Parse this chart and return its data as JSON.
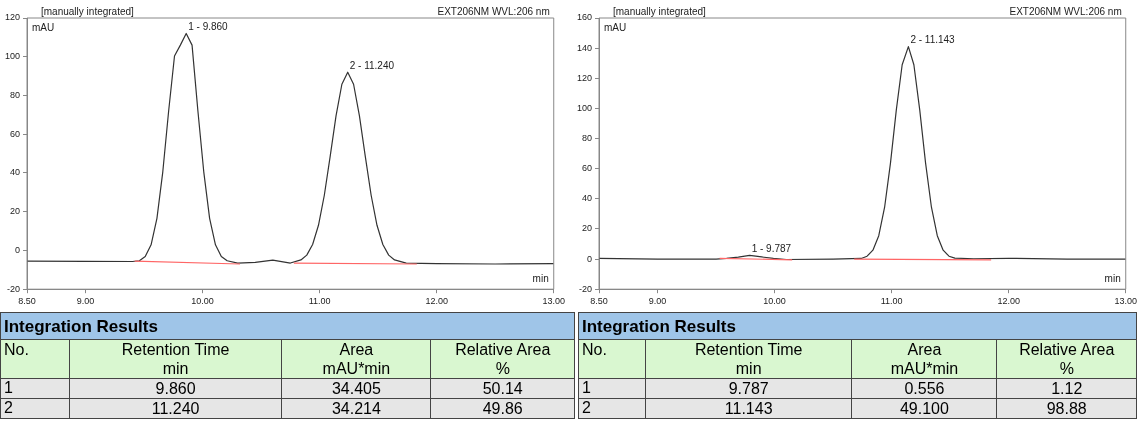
{
  "chart_data": [
    {
      "type": "line",
      "xlabel": "min",
      "ylabel": "mAU",
      "xlim": [
        8.5,
        13
      ],
      "ylim": [
        -20,
        120
      ],
      "xticks": [
        {
          "value": 8.5,
          "label": "8.50"
        },
        {
          "value": 9,
          "label": "9.00"
        },
        {
          "value": 10,
          "label": "10.00"
        },
        {
          "value": 11,
          "label": "11.00"
        },
        {
          "value": 12,
          "label": "12.00"
        },
        {
          "value": 13,
          "label": "13.00"
        }
      ],
      "yticks": [
        -20,
        0,
        20,
        40,
        60,
        80,
        100,
        120
      ],
      "annotations": [
        "[manually integrated]",
        "EXT206NM WVL:206 nm",
        {
          "text": "1 - 9.860",
          "x": 9.86,
          "y": 112
        },
        {
          "text": "2 - 11.240",
          "x": 11.24,
          "y": 92
        }
      ],
      "series": [
        {
          "color": "#333333",
          "x": [
            8.5,
            9.0,
            9.4,
            9.46,
            9.51,
            9.56,
            9.61,
            9.66,
            9.71,
            9.76,
            9.81,
            9.86,
            9.91,
            9.96,
            10.01,
            10.06,
            10.11,
            10.16,
            10.21,
            10.3,
            10.45,
            10.6,
            10.75,
            10.84,
            10.89,
            10.94,
            10.99,
            11.04,
            11.09,
            11.14,
            11.19,
            11.24,
            11.29,
            11.34,
            11.39,
            11.44,
            11.49,
            11.54,
            11.59,
            11.64,
            11.74,
            12.0,
            12.5,
            13.0
          ],
          "values": [
            -5.5,
            -5.6,
            -5.7,
            -5.3,
            -3.1,
            2.9,
            16.6,
            40.6,
            72,
            100.4,
            106,
            112,
            106,
            72,
            40.6,
            16.6,
            2.9,
            -3.1,
            -5.3,
            -6.5,
            -6.2,
            -5,
            -6.5,
            -4.9,
            -2.4,
            3.1,
            13,
            28.5,
            48.6,
            69.5,
            85.8,
            92,
            85.8,
            69.5,
            48.6,
            28.5,
            13,
            3.1,
            -2.4,
            -4.9,
            -6.5,
            -6.8,
            -7,
            -6.8
          ]
        },
        {
          "color": "#ff6666",
          "x": [
            9.42,
            10.32,
            10.55,
            10.78,
            11.83
          ],
          "values": [
            -5.5,
            -7,
            null,
            -6.5,
            -7
          ]
        }
      ]
    },
    {
      "type": "line",
      "xlabel": "min",
      "ylabel": "mAU",
      "xlim": [
        8.5,
        13
      ],
      "ylim": [
        -20,
        160
      ],
      "xticks": [
        {
          "value": 8.5,
          "label": "8.50"
        },
        {
          "value": 9,
          "label": "9.00"
        },
        {
          "value": 10,
          "label": "10.00"
        },
        {
          "value": 11,
          "label": "11.00"
        },
        {
          "value": 12,
          "label": "12.00"
        },
        {
          "value": 13,
          "label": "13.00"
        }
      ],
      "yticks": [
        -20,
        0,
        20,
        40,
        60,
        80,
        100,
        120,
        140,
        160
      ],
      "annotations": [
        "[manually integrated]",
        "EXT206NM WVL:206 nm",
        {
          "text": "1 - 9.787",
          "x": 9.787,
          "y": 2.5
        },
        {
          "text": "2 - 11.143",
          "x": 11.143,
          "y": 141
        }
      ],
      "series": [
        {
          "color": "#333333",
          "x": [
            8.5,
            9.0,
            9.5,
            9.59,
            9.69,
            9.787,
            9.89,
            9.99,
            10.1,
            10.5,
            10.74,
            10.79,
            10.84,
            10.89,
            10.94,
            10.99,
            11.04,
            11.09,
            11.143,
            11.19,
            11.24,
            11.29,
            11.34,
            11.39,
            11.44,
            11.49,
            11.54,
            11.7,
            12.0,
            12.5,
            13.0
          ],
          "values": [
            0.5,
            0,
            0,
            0.4,
            1.3,
            2.5,
            1.4,
            0.4,
            -0.3,
            0,
            0.4,
            1.9,
            5.9,
            15.5,
            34.4,
            63.7,
            99,
            129,
            141,
            129,
            99,
            63.7,
            34.4,
            15.5,
            5.9,
            1.9,
            0.6,
            0.2,
            0.5,
            0,
            0
          ]
        },
        {
          "color": "#ff6666",
          "x": [
            9.53,
            10.15,
            10.4,
            10.68,
            11.85
          ],
          "values": [
            0.5,
            -0.5,
            null,
            0,
            -0.5
          ]
        }
      ]
    },
    {
      "type": "other",
      "title": "Integration Results",
      "annotations": [
        "No.",
        "Retention Time\nmin",
        "Area\nmAU*min",
        "Relative Area\n%",
        "1",
        "9.860",
        "34.405",
        "50.14",
        "2",
        "11.240",
        "34.214",
        "49.86"
      ]
    },
    {
      "type": "other",
      "title": "Integration Results",
      "annotations": [
        "No.",
        "Retention Time\nmin",
        "Area\nmAU*min",
        "Relative Area\n%",
        "1",
        "9.787",
        "0.556",
        "1.12",
        "2",
        "11.143",
        "49.100",
        "98.88"
      ]
    }
  ]
}
